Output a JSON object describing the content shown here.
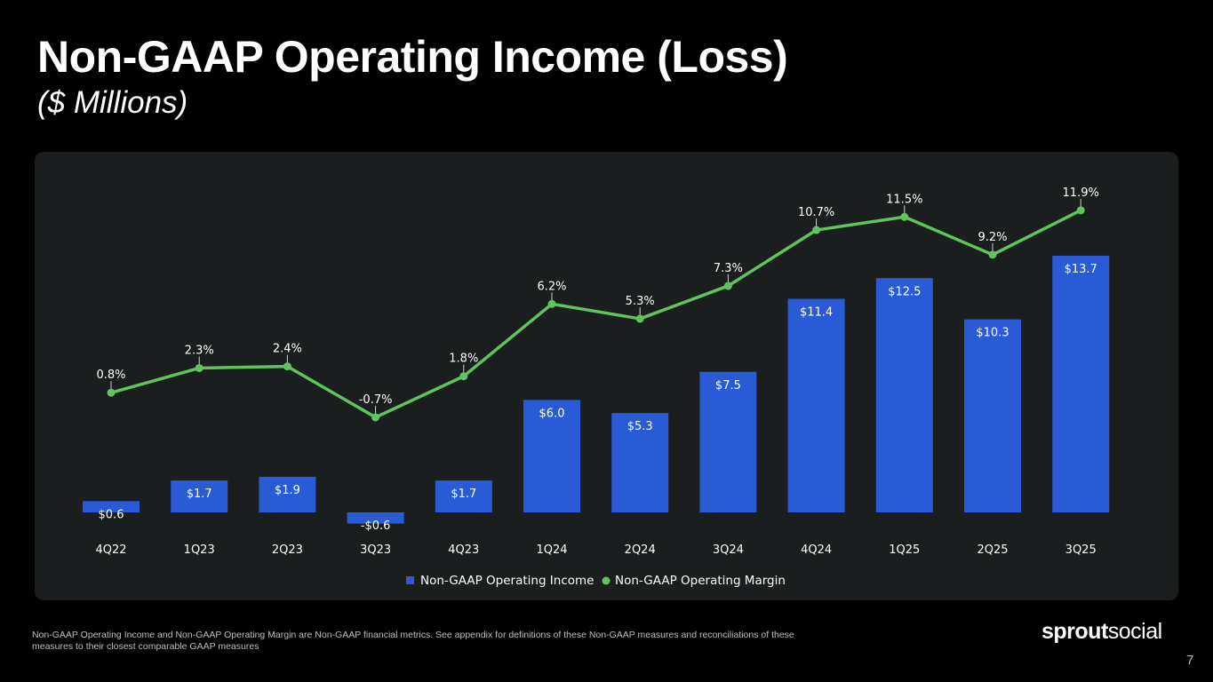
{
  "page": {
    "title": "Non-GAAP Operating Income (Loss)",
    "subtitle": "($ Millions)",
    "footnote": "Non-GAAP Operating Income and Non-GAAP Operating Margin are Non-GAAP financial metrics. See appendix for definitions of these Non-GAAP measures and reconciliations of these measures to their closest comparable GAAP measures",
    "logo_bold": "sprout",
    "logo_light": "social",
    "page_number": "7"
  },
  "chart_data": {
    "type": "bar",
    "title": "Non-GAAP Operating Income (Loss)",
    "subtitle": "($ Millions)",
    "categories": [
      "4Q22",
      "1Q23",
      "2Q23",
      "3Q23",
      "4Q23",
      "1Q24",
      "2Q24",
      "3Q24",
      "4Q24",
      "1Q25",
      "2Q25",
      "3Q25"
    ],
    "series": [
      {
        "name": "Non-GAAP Operating Income",
        "type": "bar",
        "color": "#2a5bd7",
        "values": [
          0.6,
          1.7,
          1.9,
          -0.6,
          1.7,
          6.0,
          5.3,
          7.5,
          11.4,
          12.5,
          10.3,
          13.7
        ],
        "labels": [
          "$0.6",
          "$1.7",
          "$1.9",
          "-$0.6",
          "$1.7",
          "$6.0",
          "$5.3",
          "$7.5",
          "$11.4",
          "$12.5",
          "$10.3",
          "$13.7"
        ]
      },
      {
        "name": "Non-GAAP Operating Margin",
        "type": "line",
        "color": "#5dc55a",
        "values": [
          0.8,
          2.3,
          2.4,
          -0.7,
          1.8,
          6.2,
          5.3,
          7.3,
          10.7,
          11.5,
          9.2,
          11.9
        ],
        "labels": [
          "0.8%",
          "2.3%",
          "2.4%",
          "-0.7%",
          "1.8%",
          "6.2%",
          "5.3%",
          "7.3%",
          "10.7%",
          "11.5%",
          "9.2%",
          "11.9%"
        ]
      }
    ],
    "legend_position": "bottom-center",
    "grid": false,
    "bar_ylim": [
      -0.7,
      13.7
    ],
    "line_ylim": [
      -0.7,
      11.9
    ]
  }
}
